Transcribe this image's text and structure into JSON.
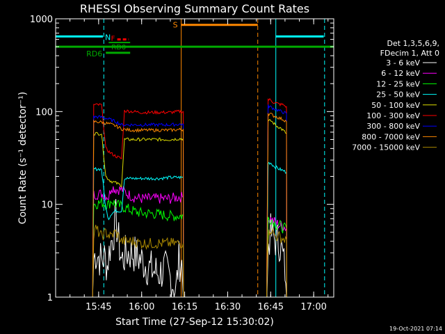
{
  "chart_data": {
    "type": "line",
    "title": "RHESSI Observing Summary Count Rates",
    "xlabel": "Start Time (27-Sep-12 15:30:02)",
    "ylabel": "Count Rate (s⁻¹ detector⁻¹)",
    "yscale": "log",
    "ylim": [
      1,
      1000
    ],
    "xlim_minutes_after_1530": [
      0,
      97
    ],
    "x_ticks": [
      "15:45",
      "16:00",
      "16:15",
      "16:30",
      "16:45",
      "17:00"
    ],
    "y_ticks": [
      "1",
      "10",
      "100",
      "1000"
    ],
    "footer": "19-Oct-2021 07:14",
    "legend": {
      "header": [
        "Det 1,3,5,6,9,",
        "FDecim 1, Att 0"
      ],
      "placement": "right"
    },
    "series": [
      {
        "name": "3 - 6 keV",
        "color": "#ffffff",
        "segments": [
          [
            [
              12.9,
              1
            ],
            [
              13.3,
              2.6
            ],
            [
              14,
              3
            ],
            [
              16,
              2.5
            ],
            [
              17,
              2.7
            ],
            [
              18,
              2.2
            ],
            [
              19,
              3.5
            ],
            [
              20,
              4.5
            ],
            [
              21,
              7
            ],
            [
              22,
              4
            ],
            [
              23,
              2.5
            ],
            [
              25,
              3
            ],
            [
              27,
              3
            ],
            [
              30,
              2.5
            ],
            [
              33,
              2
            ],
            [
              36,
              1.8
            ],
            [
              38,
              2
            ],
            [
              40,
              1.6
            ],
            [
              42,
              1.2
            ],
            [
              43,
              2.5
            ],
            [
              44,
              2.3
            ],
            [
              44.5,
              1
            ]
          ],
          [
            [
              73.7,
              1
            ],
            [
              74.2,
              4
            ],
            [
              75,
              4.8
            ],
            [
              76,
              4.5
            ],
            [
              77,
              4
            ],
            [
              78,
              4
            ],
            [
              79,
              3
            ],
            [
              80,
              2
            ],
            [
              80.5,
              1
            ]
          ]
        ]
      },
      {
        "name": "6 - 12 keV",
        "color": "#ff00ff",
        "segments": [
          [
            [
              12.9,
              1
            ],
            [
              13.3,
              12.8
            ],
            [
              16,
              13
            ],
            [
              17.5,
              12.5
            ],
            [
              18.5,
              12
            ],
            [
              19.5,
              15.5
            ],
            [
              21,
              14.5
            ],
            [
              23,
              14.5
            ],
            [
              25,
              13
            ],
            [
              27,
              12
            ],
            [
              30,
              11.5
            ],
            [
              33,
              11.5
            ],
            [
              36,
              11.5
            ],
            [
              40,
              11.5
            ],
            [
              43,
              12
            ],
            [
              44.5,
              12
            ],
            [
              44.6,
              1
            ]
          ],
          [
            [
              73.6,
              1
            ],
            [
              74.1,
              7
            ],
            [
              75,
              7
            ],
            [
              76,
              6.6
            ],
            [
              77,
              6.3
            ],
            [
              78,
              6
            ],
            [
              79.5,
              5.8
            ],
            [
              80.5,
              5.5
            ],
            [
              80.6,
              1
            ]
          ]
        ]
      },
      {
        "name": "12 - 25 keV",
        "color": "#00ff00",
        "segments": [
          [
            [
              12.9,
              1
            ],
            [
              13.3,
              10
            ],
            [
              16,
              10.5
            ],
            [
              17.5,
              10
            ],
            [
              18.5,
              10
            ],
            [
              19.5,
              11
            ],
            [
              21,
              10
            ],
            [
              23,
              9.5
            ],
            [
              25,
              9
            ],
            [
              27,
              8.5
            ],
            [
              30,
              8
            ],
            [
              33,
              8
            ],
            [
              36,
              7.8
            ],
            [
              40,
              7.5
            ],
            [
              43,
              7.5
            ],
            [
              44.5,
              7.5
            ],
            [
              44.6,
              1
            ]
          ],
          [
            [
              73.6,
              1
            ],
            [
              74.1,
              7
            ],
            [
              75,
              7
            ],
            [
              76,
              6.5
            ],
            [
              77,
              6
            ],
            [
              78,
              6
            ],
            [
              79.5,
              5.5
            ],
            [
              80.5,
              5.5
            ],
            [
              80.6,
              1
            ]
          ]
        ]
      },
      {
        "name": "25 - 50 keV",
        "color": "#00ffff",
        "segments": [
          [
            [
              12.9,
              1
            ],
            [
              13.3,
              24
            ],
            [
              16,
              24
            ],
            [
              17.5,
              9
            ],
            [
              18.5,
              7
            ],
            [
              19.5,
              8
            ],
            [
              21,
              8.5
            ],
            [
              23,
              8.5
            ],
            [
              24,
              19
            ],
            [
              27,
              19
            ],
            [
              30,
              19
            ],
            [
              33,
              19
            ],
            [
              36,
              19
            ],
            [
              40,
              19.5
            ],
            [
              43,
              19.5
            ],
            [
              44.5,
              19.5
            ],
            [
              44.6,
              1
            ]
          ],
          [
            [
              73.6,
              1
            ],
            [
              74.1,
              28
            ],
            [
              75,
              28
            ],
            [
              76,
              26
            ],
            [
              77,
              25
            ],
            [
              78,
              24
            ],
            [
              79.5,
              23
            ],
            [
              80.5,
              22
            ],
            [
              80.6,
              1
            ]
          ]
        ]
      },
      {
        "name": "50 - 100 keV",
        "color": "#dddd00",
        "segments": [
          [
            [
              12.9,
              1
            ],
            [
              13.3,
              58
            ],
            [
              16,
              58
            ],
            [
              17.5,
              20
            ],
            [
              19,
              18
            ],
            [
              21,
              17
            ],
            [
              23,
              16
            ],
            [
              24,
              50
            ],
            [
              27,
              50
            ],
            [
              30,
              50
            ],
            [
              33,
              50
            ],
            [
              36,
              50
            ],
            [
              40,
              50
            ],
            [
              43,
              51
            ],
            [
              44.5,
              51
            ],
            [
              44.6,
              1
            ]
          ],
          [
            [
              73.6,
              1
            ],
            [
              74.1,
              78
            ],
            [
              75,
              80
            ],
            [
              76,
              75
            ],
            [
              77,
              70
            ],
            [
              78,
              68
            ],
            [
              79.5,
              62
            ],
            [
              80.5,
              58
            ],
            [
              80.6,
              1
            ]
          ]
        ]
      },
      {
        "name": "100 - 300 keV",
        "color": "#ff0000",
        "segments": [
          [
            [
              12.9,
              1
            ],
            [
              13.3,
              118
            ],
            [
              16,
              118
            ],
            [
              17.5,
              40
            ],
            [
              19,
              36
            ],
            [
              21,
              33
            ],
            [
              23,
              31
            ],
            [
              24,
              102
            ],
            [
              27,
              100
            ],
            [
              30,
              98
            ],
            [
              33,
              98
            ],
            [
              36,
              98
            ],
            [
              40,
              98
            ],
            [
              43,
              100
            ],
            [
              44.5,
              100
            ],
            [
              44.6,
              1
            ]
          ],
          [
            [
              73.6,
              1
            ],
            [
              74.1,
              135
            ],
            [
              75,
              133
            ],
            [
              76,
              126
            ],
            [
              77,
              123
            ],
            [
              78,
              120
            ],
            [
              79.5,
              118
            ],
            [
              80.5,
              113
            ],
            [
              80.6,
              1
            ]
          ]
        ]
      },
      {
        "name": "300 - 800 keV",
        "color": "#0000ff",
        "segments": [
          [
            [
              12.9,
              1
            ],
            [
              13.3,
              88
            ],
            [
              16,
              87
            ],
            [
              17.5,
              85
            ],
            [
              19,
              82
            ],
            [
              21,
              78
            ],
            [
              23,
              72
            ],
            [
              24,
              72
            ],
            [
              27,
              72
            ],
            [
              30,
              72
            ],
            [
              33,
              72
            ],
            [
              36,
              72
            ],
            [
              40,
              72
            ],
            [
              43,
              73
            ],
            [
              44.5,
              73
            ],
            [
              44.6,
              1
            ]
          ],
          [
            [
              73.6,
              1
            ],
            [
              74.1,
              115
            ],
            [
              75,
              112
            ],
            [
              76,
              108
            ],
            [
              77,
              105
            ],
            [
              78,
              102
            ],
            [
              79.5,
              98
            ],
            [
              80.5,
              95
            ],
            [
              80.6,
              1
            ]
          ]
        ]
      },
      {
        "name": "800 - 7000 keV",
        "color": "#ff8800",
        "segments": [
          [
            [
              12.9,
              1
            ],
            [
              13.3,
              78
            ],
            [
              16,
              77
            ],
            [
              17.5,
              75
            ],
            [
              19,
              73
            ],
            [
              21,
              70
            ],
            [
              23,
              65
            ],
            [
              24,
              64
            ],
            [
              27,
              63
            ],
            [
              30,
              63
            ],
            [
              33,
              63
            ],
            [
              36,
              63
            ],
            [
              40,
              63
            ],
            [
              43,
              64
            ],
            [
              44.5,
              64
            ],
            [
              44.6,
              1
            ]
          ],
          [
            [
              73.6,
              1
            ],
            [
              74.1,
              95
            ],
            [
              75,
              94
            ],
            [
              76,
              90
            ],
            [
              77,
              88
            ],
            [
              78,
              85
            ],
            [
              79.5,
              82
            ],
            [
              80.5,
              78
            ],
            [
              80.6,
              1
            ]
          ]
        ]
      },
      {
        "name": "7000 - 15000 keV",
        "color": "#aa8800",
        "segments": [
          [
            [
              12.9,
              1
            ],
            [
              13.3,
              4.5
            ],
            [
              14,
              5.5
            ],
            [
              16,
              4.5
            ],
            [
              17.5,
              5
            ],
            [
              19,
              4.5
            ],
            [
              21,
              5
            ],
            [
              23,
              4
            ],
            [
              25,
              4
            ],
            [
              27,
              4
            ],
            [
              30,
              3.8
            ],
            [
              33,
              3.8
            ],
            [
              36,
              3.8
            ],
            [
              40,
              3.8
            ],
            [
              43,
              3.8
            ],
            [
              44.5,
              3.8
            ],
            [
              44.6,
              1
            ]
          ],
          [
            [
              73.6,
              1
            ],
            [
              74.1,
              4.5
            ],
            [
              75,
              5.5
            ],
            [
              76,
              4.8
            ],
            [
              77,
              4.5
            ],
            [
              78,
              4.5
            ],
            [
              79.5,
              4.2
            ],
            [
              80.5,
              4.2
            ],
            [
              80.6,
              1
            ]
          ]
        ]
      }
    ],
    "flags": {
      "night": {
        "label": "N",
        "color": "#00ffff",
        "bars": [
          [
            0,
            16.5,
            645
          ],
          [
            76.8,
            93.5,
            645
          ]
        ],
        "lines": [
          [
            0,
            "solid"
          ],
          [
            16.8,
            "dashed"
          ],
          [
            76.8,
            "solid"
          ],
          [
            93.8,
            "dashed"
          ]
        ]
      },
      "saa": {
        "label": "S",
        "color": "#ff8800",
        "bars": [
          [
            43.8,
            70.5,
            860
          ]
        ],
        "lines": [
          [
            43.8,
            "solid"
          ],
          [
            70.5,
            "dashed"
          ]
        ]
      },
      "rd6": {
        "label": "RD6",
        "color": "#00aa00",
        "bar": [
          17.5,
          26
        ],
        "level": 430
      },
      "rd0": {
        "label": "RD0",
        "color": "#00aa00",
        "bar": [
          18.5,
          26
        ],
        "level": 555
      },
      "front": {
        "label": "F",
        "color": "#ff0000",
        "bar": [
          21.5,
          25.5
        ],
        "level": 600
      },
      "decim": {
        "color": "#00aa00",
        "bar": [
          0,
          97
        ],
        "level": 500
      }
    }
  }
}
